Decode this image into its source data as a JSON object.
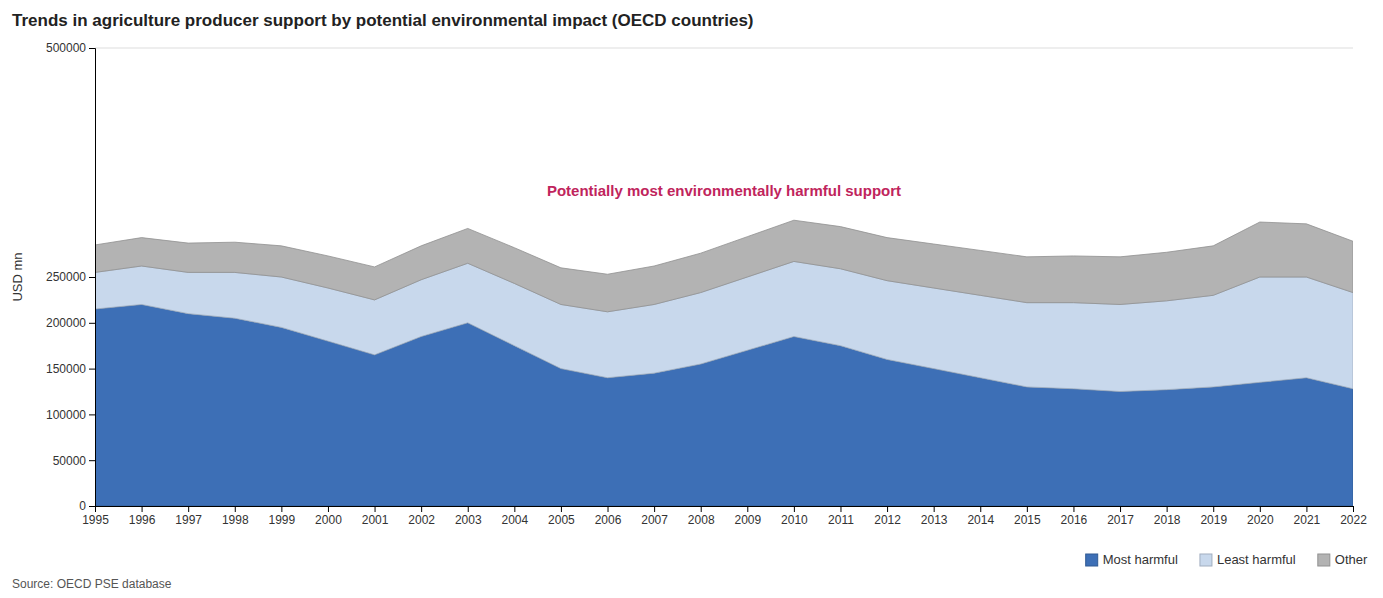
{
  "chart_data": {
    "type": "area",
    "title": "Trends in agriculture producer support by potential environmental impact (OECD countries)",
    "y_label": "USD mn",
    "annotation": "Potentially most environmentally harmful support",
    "source": "Source: OECD PSE database",
    "stacked": true,
    "grid": true,
    "legend": "bottom-right",
    "categories": [
      "1995",
      "1996",
      "1997",
      "1998",
      "1999",
      "2000",
      "2001",
      "2002",
      "2003",
      "2004",
      "2005",
      "2006",
      "2007",
      "2008",
      "2009",
      "2010",
      "2011",
      "2012",
      "2013",
      "2014",
      "2015",
      "2016",
      "2017",
      "2018",
      "2019",
      "2020",
      "2021",
      "2022"
    ],
    "series": [
      {
        "name": "Most harmful",
        "color": "#3d6fb6",
        "values": [
          215000,
          220000,
          210000,
          205000,
          195000,
          180000,
          165000,
          185000,
          200000,
          175000,
          150000,
          140000,
          145000,
          155000,
          170000,
          185000,
          175000,
          160000,
          150000,
          140000,
          130000,
          128000,
          125000,
          127000,
          130000,
          135000,
          140000,
          128000
        ]
      },
      {
        "name": "Least harmful",
        "color": "#c8d8ec",
        "values": [
          40000,
          42000,
          45000,
          50000,
          55000,
          58000,
          60000,
          62000,
          65000,
          68000,
          70000,
          72000,
          75000,
          78000,
          80000,
          82000,
          84000,
          86000,
          88000,
          90000,
          92000,
          94000,
          95000,
          97000,
          100000,
          115000,
          110000,
          105000
        ]
      },
      {
        "name": "Other",
        "color": "#b3b3b3",
        "values": [
          30000,
          31000,
          32000,
          33000,
          34000,
          35000,
          36000,
          37000,
          38000,
          39000,
          40000,
          41000,
          42000,
          43000,
          44000,
          45000,
          46000,
          47000,
          48000,
          49000,
          50000,
          51000,
          52000,
          53000,
          54000,
          60000,
          58000,
          56000
        ]
      }
    ],
    "ylim": [
      0,
      500000
    ],
    "yticks": [
      0,
      50000,
      100000,
      150000,
      200000,
      250000,
      500000
    ]
  }
}
